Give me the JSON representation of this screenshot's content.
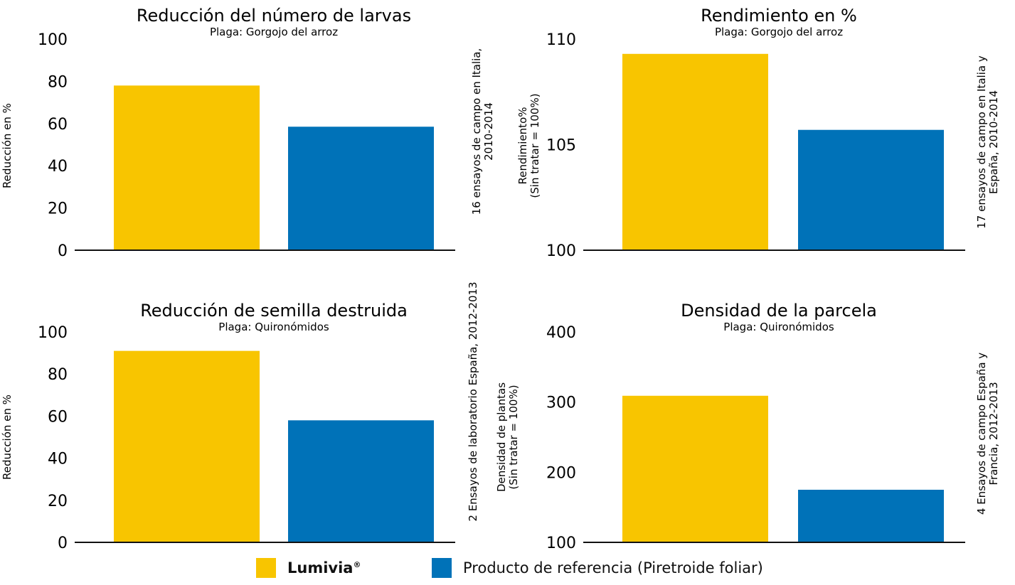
{
  "colors": {
    "lumivia": "#F8C500",
    "reference": "#0072B8",
    "axis": "#111111"
  },
  "legend": {
    "lumivia": "Lumivia",
    "lumivia_mark": "®",
    "reference": "Producto de referencia (Piretroide foliar)"
  },
  "chart_data": [
    {
      "type": "bar",
      "title": "Reducción del número de larvas",
      "subtitle": "Plaga: Gorgojo del arroz",
      "ylabel": [
        "Reducción en %"
      ],
      "ylim": [
        0,
        100
      ],
      "yticks": [
        "0",
        "20",
        "40",
        "60",
        "80",
        "100"
      ],
      "note": [
        "16 ensayos de campo en Italia,",
        "2010-2014"
      ],
      "series": [
        {
          "name": "Lumivia",
          "value": 78
        },
        {
          "name": "Producto de referencia (Piretroide foliar)",
          "value": 58.5
        }
      ]
    },
    {
      "type": "bar",
      "title": "Rendimiento en %",
      "subtitle": "Plaga: Gorgojo del arroz",
      "ylabel": [
        "Rendimiento%",
        "(Sin tratar = 100%)"
      ],
      "ylim": [
        100,
        110
      ],
      "yticks": [
        "100",
        "105",
        "110"
      ],
      "note": [
        "17 ensayos de campo en Italia y",
        "España, 2010-2014"
      ],
      "series": [
        {
          "name": "Lumivia",
          "value": 109.3
        },
        {
          "name": "Producto de referencia (Piretroide foliar)",
          "value": 105.7
        }
      ]
    },
    {
      "type": "bar",
      "title": "Reducción de semilla destruida",
      "subtitle": "Plaga: Quironómidos",
      "ylabel": [
        "Reducción en %"
      ],
      "ylim": [
        0,
        100
      ],
      "yticks": [
        "0",
        "20",
        "40",
        "60",
        "80",
        "100"
      ],
      "note": [
        "2 Ensayos de laboratorio España, 2012-2013"
      ],
      "series": [
        {
          "name": "Lumivia",
          "value": 91
        },
        {
          "name": "Producto de referencia (Piretroide foliar)",
          "value": 58
        }
      ]
    },
    {
      "type": "bar",
      "title": "Densidad de la parcela",
      "subtitle": "Plaga: Quironómidos",
      "ylabel": [
        "Densidad de plantas",
        "(Sin tratar = 100%)"
      ],
      "ylim": [
        100,
        400
      ],
      "yticks": [
        "100",
        "200",
        "300",
        "400"
      ],
      "note": [
        "4 Ensayos de campo España y",
        "Francia, 2012-2013"
      ],
      "series": [
        {
          "name": "Lumivia",
          "value": 309
        },
        {
          "name": "Producto de referencia (Piretroide foliar)",
          "value": 175
        }
      ]
    }
  ]
}
